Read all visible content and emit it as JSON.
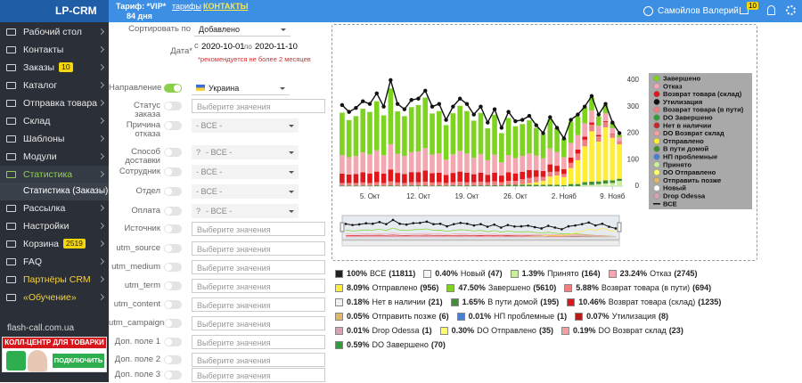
{
  "header": {
    "logo": "LP-CRM",
    "tariff": "Тариф: *VIP*",
    "days": "84 дня",
    "tariffs_link": "тарифы",
    "contacts_link": "КОНТАКТЫ",
    "user": "Самойлов Валерий",
    "cart_badge": "10"
  },
  "sidebar": {
    "items": [
      {
        "label": "Рабочий стол"
      },
      {
        "label": "Контакты"
      },
      {
        "label": "Заказы",
        "badge": "10"
      },
      {
        "label": "Каталог"
      },
      {
        "label": "Отправка товара"
      },
      {
        "label": "Склад"
      },
      {
        "label": "Шаблоны"
      },
      {
        "label": "Модули"
      },
      {
        "label": "Статистика",
        "active": true
      },
      {
        "label": "Статистика (Заказы)",
        "sub": true
      },
      {
        "label": "Рассылка"
      },
      {
        "label": "Настройки"
      },
      {
        "label": "Корзина",
        "badge": "2519"
      },
      {
        "label": "FAQ"
      },
      {
        "label": "Партнёры CRM",
        "highlight": true
      },
      {
        "label": "«Обучение»",
        "highlight": true
      }
    ],
    "promo": {
      "site": "flash-call.com.ua",
      "banner": "КОЛЛ-ЦЕНТР ДЛЯ ТОВАРКИ",
      "button": "ПОДКЛЮЧИТЬ"
    }
  },
  "filters": {
    "sort_label": "Сортировать по",
    "sort_value": "Добавлено",
    "date_label": "Дата*",
    "from_label": "с",
    "from": "2020-10-01",
    "to_label": "по",
    "to": "2020-11-10",
    "date_note": "*рекомендуется не более 2 месяцев",
    "fields": [
      {
        "label": "Направление",
        "value": "Украина",
        "kind": "select",
        "on": true
      },
      {
        "label": "Статус заказа",
        "value": "Выберите значения",
        "kind": "multi"
      },
      {
        "label": "Причина отказа",
        "value": "- ВСЕ -",
        "kind": "disabled"
      },
      {
        "label": "Способ доставки",
        "value": "- ВСЕ -",
        "kind": "disabled",
        "prefix": "?"
      },
      {
        "label": "Сотрудник",
        "value": "- ВСЕ -",
        "kind": "disabled"
      },
      {
        "label": "Отдел",
        "value": "- ВСЕ -",
        "kind": "disabled"
      },
      {
        "label": "Оплата",
        "value": "- ВСЕ -",
        "kind": "disabled",
        "prefix": "?"
      },
      {
        "label": "Источник",
        "value": "Выберите значения",
        "kind": "multi"
      },
      {
        "label": "utm_source",
        "value": "Выберите значения",
        "kind": "multi"
      },
      {
        "label": "utm_medium",
        "value": "Выберите значения",
        "kind": "multi"
      },
      {
        "label": "utm_term",
        "value": "Выберите значения",
        "kind": "multi"
      },
      {
        "label": "utm_content",
        "value": "Выберите значения",
        "kind": "multi"
      },
      {
        "label": "utm_campaign",
        "value": "Выберите значения",
        "kind": "multi"
      },
      {
        "label": "Доп. поле 1",
        "value": "Выберите значения",
        "kind": "multi"
      },
      {
        "label": "Доп. поле 2",
        "value": "Выберите значения",
        "kind": "multi"
      },
      {
        "label": "Доп. поле 3",
        "value": "Выберите значения",
        "kind": "multi"
      }
    ]
  },
  "chart_data": {
    "type": "bar",
    "stacked": true,
    "categories": [
      null,
      null,
      null,
      null,
      "5. Окт",
      null,
      null,
      null,
      null,
      null,
      null,
      "12. Окт",
      null,
      null,
      null,
      null,
      null,
      null,
      "19. Окт",
      null,
      null,
      null,
      null,
      null,
      null,
      "26. Окт",
      null,
      null,
      null,
      null,
      null,
      null,
      "2. Нояб",
      null,
      null,
      null,
      null,
      null,
      null,
      "9. Нояб",
      null
    ],
    "ylim": [
      0,
      440
    ],
    "yticks": [
      0,
      100,
      200,
      300,
      400
    ],
    "series": [
      {
        "name": "Завершено",
        "color": "#7ed321",
        "values": [
          160,
          140,
          150,
          165,
          160,
          185,
          150,
          210,
          160,
          150,
          170,
          175,
          190,
          155,
          160,
          130,
          155,
          170,
          160,
          140,
          155,
          120,
          150,
          110,
          140,
          120,
          120,
          125,
          105,
          90,
          110,
          90,
          70,
          80,
          70,
          60,
          50,
          35,
          30,
          20,
          10
        ]
      },
      {
        "name": "Отказ",
        "color": "#f4a7b0",
        "values": [
          70,
          65,
          68,
          75,
          72,
          80,
          70,
          95,
          72,
          68,
          75,
          78,
          85,
          70,
          72,
          58,
          70,
          78,
          72,
          62,
          70,
          55,
          68,
          50,
          65,
          58,
          60,
          62,
          55,
          48,
          60,
          52,
          45,
          55,
          55,
          50,
          45,
          35,
          30,
          20,
          15
        ]
      },
      {
        "name": "Возврат товара (склад)",
        "color": "#e0161b",
        "values": [
          35,
          32,
          34,
          38,
          36,
          40,
          35,
          45,
          36,
          34,
          38,
          38,
          42,
          35,
          36,
          30,
          35,
          38,
          36,
          30,
          34,
          28,
          33,
          25,
          32,
          28,
          28,
          30,
          25,
          22,
          28,
          22,
          18,
          20,
          15,
          12,
          8,
          5,
          3,
          2,
          1
        ]
      },
      {
        "name": "Утилизация",
        "color": "#111111",
        "values": [
          0,
          0,
          0,
          0,
          0,
          0,
          0,
          0,
          0,
          0,
          0,
          0,
          0,
          0,
          0,
          0,
          0,
          0,
          0,
          0,
          0,
          0,
          0,
          0,
          0,
          0,
          0,
          0,
          0,
          0,
          0,
          0,
          0,
          0,
          0,
          0,
          0,
          0,
          0,
          0,
          0
        ]
      },
      {
        "name": "Возврат товара (в пути)",
        "color": "#f08080",
        "values": [
          10,
          10,
          10,
          12,
          10,
          12,
          10,
          15,
          12,
          10,
          12,
          12,
          14,
          12,
          12,
          10,
          12,
          14,
          12,
          12,
          14,
          12,
          14,
          12,
          15,
          15,
          18,
          20,
          20,
          15,
          18,
          15,
          12,
          20,
          25,
          25,
          25,
          20,
          20,
          15,
          10
        ]
      },
      {
        "name": "DO Завершено",
        "color": "#2e9e3a",
        "values": [
          0,
          0,
          0,
          0,
          0,
          0,
          0,
          0,
          0,
          0,
          0,
          0,
          0,
          0,
          0,
          0,
          0,
          0,
          0,
          0,
          0,
          0,
          0,
          0,
          0,
          0,
          0,
          0,
          0,
          0,
          0,
          0,
          0,
          0,
          0,
          0,
          0,
          0,
          0,
          0,
          0
        ]
      },
      {
        "name": "Нет в наличии",
        "color": "#c62828",
        "values": [
          0,
          0,
          0,
          0,
          0,
          0,
          0,
          0,
          0,
          0,
          0,
          0,
          0,
          0,
          0,
          0,
          0,
          0,
          0,
          0,
          0,
          0,
          0,
          0,
          0,
          0,
          0,
          0,
          0,
          0,
          0,
          0,
          0,
          0,
          0,
          0,
          0,
          0,
          0,
          0,
          0
        ]
      },
      {
        "name": "DO Возврат склад",
        "color": "#f4a0a0",
        "values": [
          0,
          0,
          0,
          0,
          0,
          0,
          0,
          0,
          0,
          0,
          0,
          0,
          0,
          0,
          0,
          0,
          0,
          0,
          0,
          0,
          0,
          0,
          0,
          0,
          0,
          0,
          0,
          0,
          0,
          0,
          0,
          0,
          0,
          0,
          0,
          0,
          0,
          0,
          0,
          0,
          0
        ]
      },
      {
        "name": "Отправлено",
        "color": "#ffee33",
        "values": [
          0,
          0,
          0,
          0,
          0,
          0,
          0,
          0,
          0,
          0,
          0,
          0,
          0,
          0,
          0,
          0,
          0,
          0,
          0,
          0,
          0,
          0,
          0,
          0,
          0,
          0,
          2,
          5,
          10,
          15,
          30,
          35,
          30,
          60,
          90,
          135,
          190,
          150,
          200,
          160,
          130
        ]
      },
      {
        "name": "В пути домой",
        "color": "#3f8f35",
        "values": [
          2,
          2,
          2,
          2,
          2,
          3,
          2,
          3,
          2,
          2,
          3,
          3,
          3,
          2,
          3,
          2,
          3,
          3,
          3,
          3,
          3,
          3,
          4,
          3,
          5,
          5,
          6,
          6,
          5,
          5,
          6,
          5,
          4,
          8,
          8,
          10,
          12,
          10,
          12,
          10,
          8
        ]
      },
      {
        "name": "НП проблемные",
        "color": "#4a7fd6",
        "values": [
          0,
          0,
          0,
          0,
          0,
          0,
          0,
          0,
          0,
          0,
          0,
          0,
          0,
          0,
          0,
          0,
          0,
          0,
          0,
          0,
          0,
          0,
          0,
          0,
          0,
          0,
          0,
          0,
          0,
          0,
          0,
          0,
          0,
          0,
          0,
          0,
          0,
          0,
          0,
          0,
          0
        ]
      },
      {
        "name": "Принято",
        "color": "#c8f09a",
        "values": [
          0,
          0,
          0,
          0,
          0,
          0,
          0,
          0,
          0,
          0,
          0,
          0,
          0,
          0,
          0,
          0,
          0,
          0,
          0,
          0,
          0,
          0,
          0,
          0,
          0,
          0,
          0,
          0,
          0,
          0,
          0,
          0,
          0,
          0,
          0,
          5,
          5,
          8,
          10,
          12,
          20
        ]
      },
      {
        "name": "DO Отправлено",
        "color": "#ffff66",
        "values": [
          0,
          0,
          0,
          0,
          0,
          0,
          0,
          0,
          0,
          0,
          0,
          0,
          0,
          0,
          0,
          0,
          0,
          0,
          0,
          0,
          0,
          0,
          0,
          0,
          0,
          0,
          0,
          0,
          0,
          0,
          0,
          0,
          0,
          0,
          0,
          0,
          0,
          0,
          0,
          0,
          0
        ]
      },
      {
        "name": "Отправить позже",
        "color": "#e2b866",
        "values": [
          0,
          0,
          0,
          0,
          0,
          0,
          0,
          0,
          0,
          0,
          0,
          0,
          0,
          0,
          0,
          0,
          0,
          0,
          0,
          0,
          0,
          0,
          0,
          0,
          0,
          0,
          0,
          0,
          0,
          0,
          0,
          0,
          0,
          0,
          0,
          0,
          0,
          0,
          0,
          0,
          0
        ]
      },
      {
        "name": "Новый",
        "color": "#ffffff",
        "values": [
          0,
          0,
          0,
          0,
          0,
          0,
          0,
          0,
          0,
          0,
          0,
          0,
          0,
          0,
          0,
          0,
          0,
          0,
          0,
          0,
          0,
          0,
          0,
          0,
          0,
          0,
          0,
          0,
          0,
          0,
          0,
          0,
          0,
          0,
          0,
          0,
          0,
          0,
          0,
          0,
          0
        ]
      },
      {
        "name": "Drop Odessa",
        "color": "#d9a0b8",
        "values": [
          0,
          0,
          0,
          0,
          0,
          0,
          0,
          0,
          0,
          0,
          0,
          0,
          0,
          0,
          0,
          0,
          0,
          0,
          0,
          0,
          0,
          0,
          0,
          0,
          0,
          0,
          0,
          0,
          0,
          0,
          0,
          0,
          0,
          0,
          0,
          0,
          0,
          0,
          0,
          0,
          0
        ]
      },
      {
        "name": "ВСЕ",
        "color": "#111111",
        "type": "line",
        "values": [
          306,
          280,
          295,
          320,
          310,
          350,
          300,
          400,
          310,
          290,
          325,
          330,
          360,
          300,
          310,
          250,
          300,
          330,
          310,
          270,
          300,
          240,
          290,
          220,
          280,
          245,
          250,
          265,
          230,
          200,
          260,
          220,
          180,
          250,
          270,
          300,
          340,
          270,
          310,
          240,
          200
        ]
      }
    ]
  },
  "summary": [
    {
      "percent": "100%",
      "name": "ВСЕ",
      "count": 11811,
      "color": "#222222"
    },
    {
      "percent": "0.40%",
      "name": "Новый",
      "count": 47,
      "color": "#f5f5f5"
    },
    {
      "percent": "1.39%",
      "name": "Принято",
      "count": 164,
      "color": "#c8f09a"
    },
    {
      "percent": "23.24%",
      "name": "Отказ",
      "count": 2745,
      "color": "#f4a7b0"
    },
    {
      "percent": "8.09%",
      "name": "Отправлено",
      "count": 956,
      "color": "#ffee33"
    },
    {
      "percent": "47.50%",
      "name": "Завершено",
      "count": 5610,
      "color": "#7ed321"
    },
    {
      "percent": "5.88%",
      "name": "Возврат товара (в пути)",
      "count": 694,
      "color": "#f08080"
    },
    {
      "percent": "0.18%",
      "name": "Нет в наличии",
      "count": 21,
      "color": "#f0f0f0"
    },
    {
      "percent": "1.65%",
      "name": "В пути домой",
      "count": 195,
      "color": "#3f8f35"
    },
    {
      "percent": "10.46%",
      "name": "Возврат товара (склад)",
      "count": 1235,
      "color": "#e0161b"
    },
    {
      "percent": "0.05%",
      "name": "Отправить позже",
      "count": 6,
      "color": "#e2b866"
    },
    {
      "percent": "0.01%",
      "name": "НП проблемные",
      "count": 1,
      "color": "#4a7fd6"
    },
    {
      "percent": "0.07%",
      "name": "Утилизация",
      "count": 8,
      "color": "#b71c1c"
    },
    {
      "percent": "0.01%",
      "name": "Drop Odessa",
      "count": 1,
      "color": "#d9a0b8"
    },
    {
      "percent": "0.30%",
      "name": "DO Отправлено",
      "count": 35,
      "color": "#ffff66"
    },
    {
      "percent": "0.19%",
      "name": "DO Возврат склад",
      "count": 23,
      "color": "#f4a0a0"
    },
    {
      "percent": "0.59%",
      "name": "DO Завершено",
      "count": 70,
      "color": "#2e9e3a"
    }
  ]
}
